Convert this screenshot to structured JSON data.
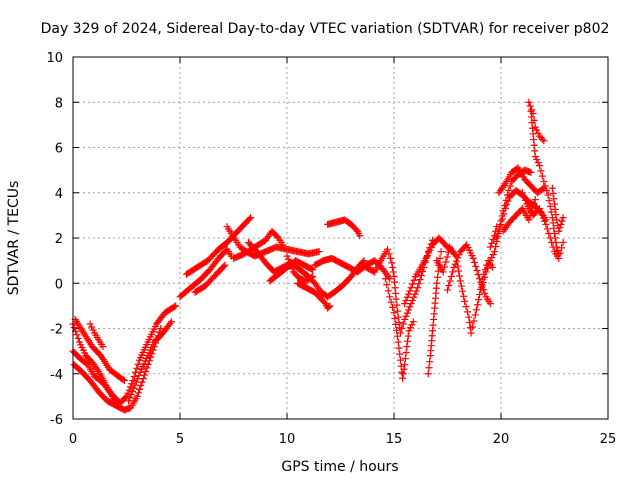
{
  "chart_data": {
    "type": "scatter",
    "title": "Day 329 of 2024, Sidereal Day-to-day VTEC variation (SDTVAR) for receiver p802",
    "xlabel": "GPS time / hours",
    "ylabel": "SDTVAR / TECUs",
    "xlim": [
      0,
      25
    ],
    "ylim": [
      -6,
      10
    ],
    "xticks": [
      0,
      5,
      10,
      15,
      20,
      25
    ],
    "yticks": [
      -6,
      -4,
      -2,
      0,
      2,
      4,
      6,
      8,
      10
    ],
    "grid": true,
    "marker": "+",
    "color": "#ff0000",
    "series": [
      {
        "traces": [
          [
            [
              0.0,
              -1.8
            ],
            [
              0.3,
              -2.6
            ],
            [
              0.6,
              -3.2
            ],
            [
              0.9,
              -3.5
            ],
            [
              1.2,
              -3.9
            ],
            [
              1.6,
              -4.6
            ],
            [
              1.9,
              -5.1
            ],
            [
              2.2,
              -5.3
            ],
            [
              2.5,
              -5.0
            ],
            [
              2.8,
              -4.3
            ],
            [
              3.1,
              -3.4
            ],
            [
              3.5,
              -2.6
            ],
            [
              3.9,
              -1.8
            ],
            [
              4.3,
              -1.3
            ],
            [
              4.8,
              -1.0
            ]
          ],
          [
            [
              0.05,
              -3.6
            ],
            [
              0.4,
              -3.9
            ],
            [
              0.8,
              -4.3
            ],
            [
              1.2,
              -4.8
            ],
            [
              1.6,
              -5.2
            ],
            [
              2.0,
              -5.4
            ],
            [
              2.4,
              -5.6
            ],
            [
              2.7,
              -5.5
            ],
            [
              3.0,
              -5.0
            ],
            [
              3.4,
              -3.9
            ],
            [
              3.8,
              -2.8
            ],
            [
              4.1,
              -2.0
            ]
          ],
          [
            [
              0.1,
              -1.6
            ],
            [
              0.5,
              -2.2
            ],
            [
              0.9,
              -2.8
            ],
            [
              1.3,
              -3.2
            ],
            [
              1.7,
              -3.8
            ],
            [
              2.1,
              -4.1
            ],
            [
              2.4,
              -4.3
            ]
          ],
          [
            [
              0.8,
              -1.8
            ],
            [
              1.0,
              -2.2
            ],
            [
              1.2,
              -2.5
            ],
            [
              1.4,
              -2.8
            ]
          ],
          [
            [
              0.0,
              -3.0
            ],
            [
              0.3,
              -3.3
            ],
            [
              0.7,
              -3.6
            ],
            [
              1.0,
              -4.1
            ],
            [
              1.4,
              -4.4
            ],
            [
              1.8,
              -4.9
            ],
            [
              2.2,
              -5.3
            ]
          ],
          [
            [
              2.6,
              -5.2
            ],
            [
              2.9,
              -4.5
            ],
            [
              3.2,
              -3.8
            ],
            [
              3.5,
              -3.2
            ],
            [
              3.8,
              -2.6
            ],
            [
              4.2,
              -2.2
            ],
            [
              4.6,
              -1.7
            ]
          ],
          [
            [
              5.0,
              -0.6
            ],
            [
              5.5,
              -0.2
            ],
            [
              6.0,
              0.2
            ],
            [
              6.4,
              0.6
            ],
            [
              6.8,
              1.1
            ],
            [
              7.2,
              1.5
            ],
            [
              7.4,
              1.2
            ]
          ],
          [
            [
              5.3,
              0.4
            ],
            [
              5.8,
              0.7
            ],
            [
              6.3,
              1.0
            ],
            [
              6.8,
              1.5
            ],
            [
              7.2,
              1.8
            ],
            [
              7.6,
              2.2
            ],
            [
              8.0,
              2.6
            ],
            [
              8.3,
              2.9
            ]
          ],
          [
            [
              5.7,
              -0.4
            ],
            [
              6.2,
              -0.1
            ],
            [
              6.7,
              0.4
            ],
            [
              7.1,
              0.8
            ]
          ],
          [
            [
              7.2,
              2.5
            ],
            [
              7.4,
              2.2
            ],
            [
              7.6,
              1.9
            ],
            [
              7.8,
              1.6
            ],
            [
              8.1,
              1.4
            ],
            [
              8.5,
              1.2
            ],
            [
              9.0,
              1.4
            ],
            [
              9.5,
              1.6
            ],
            [
              10.0,
              1.5
            ],
            [
              10.5,
              1.4
            ],
            [
              11.0,
              1.3
            ],
            [
              11.5,
              1.4
            ]
          ],
          [
            [
              7.5,
              1.1
            ],
            [
              8.0,
              1.3
            ],
            [
              8.5,
              1.6
            ],
            [
              9.0,
              1.9
            ],
            [
              9.3,
              2.3
            ],
            [
              9.6,
              2.0
            ],
            [
              9.8,
              1.7
            ]
          ],
          [
            [
              8.2,
              1.8
            ],
            [
              8.6,
              1.4
            ],
            [
              9.0,
              0.9
            ],
            [
              9.4,
              0.5
            ],
            [
              9.8,
              0.7
            ],
            [
              10.2,
              0.9
            ],
            [
              10.6,
              0.6
            ],
            [
              11.0,
              0.3
            ],
            [
              11.3,
              0.0
            ],
            [
              11.6,
              -0.4
            ],
            [
              11.9,
              -0.6
            ],
            [
              12.2,
              -0.4
            ],
            [
              12.6,
              -0.1
            ],
            [
              13.0,
              0.3
            ],
            [
              13.3,
              0.7
            ],
            [
              13.6,
              1.0
            ]
          ],
          [
            [
              9.2,
              0.1
            ],
            [
              9.6,
              0.4
            ],
            [
              10.0,
              0.7
            ],
            [
              10.4,
              1.0
            ],
            [
              10.8,
              0.8
            ],
            [
              11.2,
              0.6
            ]
          ],
          [
            [
              10.5,
              0.0
            ],
            [
              10.9,
              -0.2
            ],
            [
              11.3,
              -0.4
            ],
            [
              11.6,
              -0.7
            ],
            [
              11.8,
              -0.9
            ],
            [
              11.9,
              -1.1
            ],
            [
              12.0,
              -1.0
            ]
          ],
          [
            [
              11.3,
              0.8
            ],
            [
              11.7,
              1.0
            ],
            [
              12.1,
              1.1
            ],
            [
              12.5,
              0.9
            ],
            [
              12.9,
              0.7
            ],
            [
              13.3,
              0.5
            ],
            [
              13.7,
              0.8
            ],
            [
              14.1,
              1.0
            ],
            [
              14.5,
              0.6
            ],
            [
              14.8,
              0.2
            ]
          ],
          [
            [
              11.9,
              2.6
            ],
            [
              12.3,
              2.7
            ],
            [
              12.7,
              2.8
            ],
            [
              13.0,
              2.6
            ],
            [
              13.3,
              2.3
            ],
            [
              13.4,
              2.1
            ]
          ],
          [
            [
              10.0,
              1.2
            ],
            [
              10.3,
              0.5
            ],
            [
              10.6,
              0.2
            ],
            [
              10.9,
              0.1
            ],
            [
              11.2,
              0.3
            ]
          ],
          [
            [
              13.7,
              0.7
            ],
            [
              14.1,
              0.5
            ],
            [
              14.5,
              1.2
            ],
            [
              14.7,
              1.5
            ],
            [
              14.9,
              0.9
            ],
            [
              15.0,
              0.3
            ],
            [
              15.1,
              -0.7
            ],
            [
              15.2,
              -1.5
            ],
            [
              15.3,
              -2.2
            ],
            [
              15.5,
              -1.6
            ],
            [
              15.8,
              -0.9
            ],
            [
              16.1,
              -0.2
            ],
            [
              16.4,
              0.7
            ],
            [
              16.6,
              1.4
            ],
            [
              16.8,
              1.9
            ]
          ],
          [
            [
              14.6,
              0.2
            ],
            [
              14.8,
              -0.6
            ],
            [
              15.0,
              -1.3
            ],
            [
              15.2,
              -2.6
            ],
            [
              15.3,
              -3.4
            ],
            [
              15.4,
              -4.2
            ],
            [
              15.5,
              -3.6
            ],
            [
              15.6,
              -2.8
            ],
            [
              15.7,
              -2.1
            ],
            [
              15.9,
              -1.7
            ]
          ],
          [
            [
              15.5,
              -0.9
            ],
            [
              15.8,
              -0.2
            ],
            [
              16.0,
              0.3
            ],
            [
              16.2,
              0.6
            ],
            [
              16.5,
              1.1
            ],
            [
              16.8,
              1.7
            ],
            [
              17.1,
              2.0
            ],
            [
              17.4,
              1.7
            ],
            [
              17.7,
              1.4
            ]
          ],
          [
            [
              16.6,
              -4.0
            ],
            [
              16.7,
              -3.2
            ],
            [
              16.8,
              -2.1
            ],
            [
              16.9,
              -1.1
            ],
            [
              17.0,
              0.0
            ],
            [
              17.1,
              0.8
            ],
            [
              17.2,
              1.4
            ]
          ],
          [
            [
              17.0,
              1.0
            ],
            [
              17.3,
              0.5
            ],
            [
              17.6,
              1.6
            ],
            [
              17.9,
              1.2
            ],
            [
              18.1,
              0.1
            ],
            [
              18.3,
              -0.8
            ],
            [
              18.5,
              -1.5
            ],
            [
              18.6,
              -2.2
            ],
            [
              18.8,
              -1.4
            ],
            [
              19.0,
              -0.5
            ],
            [
              19.2,
              0.4
            ],
            [
              19.4,
              1.0
            ],
            [
              19.6,
              0.7
            ]
          ],
          [
            [
              17.5,
              -0.3
            ],
            [
              17.8,
              0.7
            ],
            [
              18.1,
              1.4
            ],
            [
              18.4,
              1.7
            ],
            [
              18.7,
              1.1
            ],
            [
              19.0,
              0.2
            ],
            [
              19.3,
              -0.6
            ],
            [
              19.5,
              -0.9
            ]
          ],
          [
            [
              19.1,
              -0.2
            ],
            [
              19.3,
              0.5
            ],
            [
              19.5,
              1.0
            ],
            [
              19.7,
              1.4
            ],
            [
              19.9,
              2.3
            ],
            [
              20.1,
              3.2
            ],
            [
              20.3,
              3.9
            ],
            [
              20.5,
              4.5
            ],
            [
              20.8,
              4.8
            ],
            [
              21.1,
              5.0
            ],
            [
              21.4,
              4.9
            ]
          ],
          [
            [
              19.8,
              2.0
            ],
            [
              20.0,
              2.6
            ],
            [
              20.2,
              3.3
            ],
            [
              20.4,
              3.8
            ],
            [
              20.7,
              4.1
            ],
            [
              21.0,
              3.9
            ],
            [
              21.3,
              3.6
            ],
            [
              21.6,
              3.4
            ],
            [
              21.9,
              3.1
            ],
            [
              22.1,
              2.8
            ]
          ],
          [
            [
              19.9,
              4.0
            ],
            [
              20.2,
              4.4
            ],
            [
              20.5,
              4.9
            ],
            [
              20.8,
              5.1
            ],
            [
              21.1,
              4.6
            ],
            [
              21.4,
              4.3
            ],
            [
              21.7,
              4.0
            ],
            [
              22.0,
              4.2
            ]
          ],
          [
            [
              21.3,
              8.0
            ],
            [
              21.5,
              7.5
            ],
            [
              21.6,
              6.9
            ],
            [
              21.8,
              6.5
            ],
            [
              22.0,
              6.3
            ]
          ],
          [
            [
              21.4,
              7.6
            ],
            [
              21.5,
              6.6
            ],
            [
              21.6,
              5.6
            ],
            [
              21.8,
              5.2
            ],
            [
              22.0,
              4.5
            ],
            [
              22.2,
              3.9
            ],
            [
              22.4,
              2.9
            ],
            [
              22.5,
              2.2
            ],
            [
              22.6,
              1.6
            ],
            [
              22.7,
              1.3
            ]
          ],
          [
            [
              22.4,
              4.2
            ],
            [
              22.5,
              3.5
            ],
            [
              22.6,
              2.8
            ],
            [
              22.7,
              2.3
            ],
            [
              22.8,
              2.6
            ],
            [
              22.9,
              2.9
            ]
          ],
          [
            [
              21.0,
              4.0
            ],
            [
              21.2,
              3.5
            ],
            [
              21.5,
              3.0
            ],
            [
              21.8,
              3.3
            ],
            [
              22.1,
              2.6
            ],
            [
              22.3,
              2.0
            ],
            [
              22.5,
              1.4
            ],
            [
              22.7,
              1.1
            ],
            [
              22.9,
              1.8
            ]
          ],
          [
            [
              20.1,
              2.3
            ],
            [
              20.4,
              2.7
            ],
            [
              20.7,
              3.0
            ],
            [
              21.0,
              3.3
            ],
            [
              21.3,
              2.8
            ],
            [
              21.6,
              3.7
            ]
          ],
          [
            [
              19.5,
              1.6
            ],
            [
              19.7,
              2.1
            ],
            [
              19.8,
              2.5
            ]
          ]
        ]
      }
    ]
  }
}
